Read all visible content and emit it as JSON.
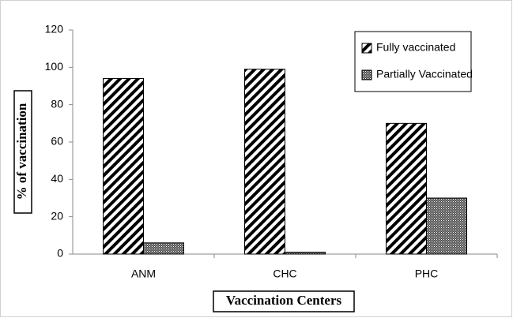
{
  "chart_data": {
    "type": "bar",
    "categories": [
      "ANM",
      "CHC",
      "PHC"
    ],
    "series": [
      {
        "name": "Fully vaccinated",
        "values": [
          94,
          99,
          70
        ]
      },
      {
        "name": "Partially Vaccinated",
        "values": [
          6,
          1,
          30
        ]
      }
    ],
    "xlabel": "Vaccination Centers",
    "ylabel": "% of vaccination",
    "ylim": [
      0,
      120
    ],
    "yticks": [
      0,
      20,
      40,
      60,
      80,
      100,
      120
    ],
    "grid": false,
    "legend": "upper right"
  }
}
